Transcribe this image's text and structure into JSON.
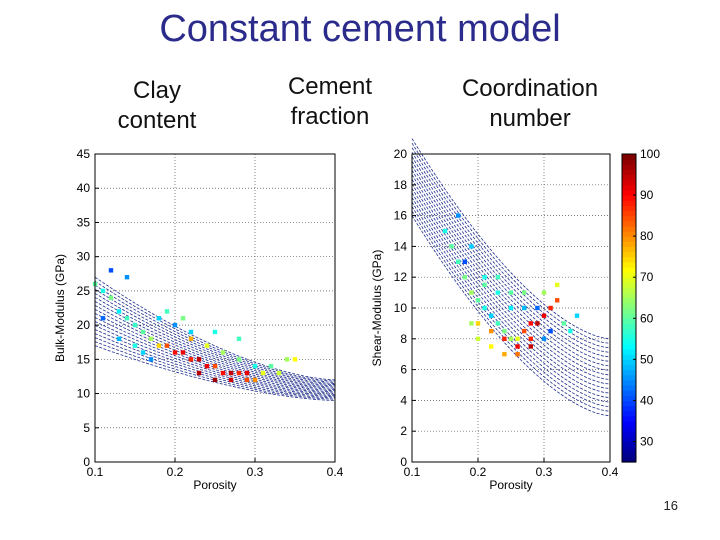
{
  "slide": {
    "title": "Constant cement model",
    "labels": [
      {
        "line1": "Clay",
        "line2": "content"
      },
      {
        "line1": "Cement",
        "line2": "fraction"
      },
      {
        "line1": "Coordination",
        "line2": "number"
      }
    ],
    "page_number": "16"
  },
  "chart_data": [
    {
      "type": "scatter",
      "xlabel": "Porosity",
      "ylabel": "Bulk-Modulus (GPa)",
      "xlim": [
        0.1,
        0.4
      ],
      "ylim": [
        0,
        45
      ],
      "xticks": [
        0.1,
        0.2,
        0.3,
        0.4
      ],
      "yticks": [
        0,
        5,
        10,
        15,
        20,
        25,
        30,
        35,
        40,
        45
      ],
      "grid": true,
      "curves": {
        "count": 18,
        "x_start": 0.1,
        "x_end": 0.4,
        "y_at_start_range": [
          17,
          27
        ],
        "y_at_end_range": [
          9,
          12
        ]
      },
      "points": [
        [
          0.1,
          26,
          60
        ],
        [
          0.11,
          25,
          55
        ],
        [
          0.12,
          24,
          62
        ],
        [
          0.13,
          22,
          52
        ],
        [
          0.14,
          21,
          58
        ],
        [
          0.15,
          20,
          57
        ],
        [
          0.16,
          19,
          60
        ],
        [
          0.17,
          18,
          65
        ],
        [
          0.18,
          17,
          75
        ],
        [
          0.19,
          17,
          85
        ],
        [
          0.2,
          16,
          90
        ],
        [
          0.21,
          16,
          92
        ],
        [
          0.22,
          15,
          88
        ],
        [
          0.23,
          15,
          95
        ],
        [
          0.24,
          14,
          92
        ],
        [
          0.25,
          14,
          85
        ],
        [
          0.26,
          13,
          90
        ],
        [
          0.27,
          13,
          95
        ],
        [
          0.28,
          13,
          88
        ],
        [
          0.29,
          12,
          85
        ],
        [
          0.3,
          12,
          80
        ],
        [
          0.22,
          18,
          78
        ],
        [
          0.24,
          17,
          70
        ],
        [
          0.26,
          16,
          65
        ],
        [
          0.28,
          15,
          62
        ],
        [
          0.3,
          14,
          55
        ],
        [
          0.32,
          14,
          60
        ],
        [
          0.34,
          15,
          65
        ],
        [
          0.18,
          21,
          50
        ],
        [
          0.2,
          20,
          45
        ],
        [
          0.22,
          19,
          50
        ],
        [
          0.25,
          19,
          55
        ],
        [
          0.28,
          18,
          58
        ],
        [
          0.19,
          22,
          58
        ],
        [
          0.21,
          21,
          62
        ],
        [
          0.12,
          28,
          40
        ],
        [
          0.14,
          27,
          45
        ],
        [
          0.11,
          21,
          42
        ],
        [
          0.13,
          18,
          48
        ],
        [
          0.15,
          17,
          55
        ],
        [
          0.16,
          16,
          50
        ],
        [
          0.17,
          15,
          45
        ],
        [
          0.23,
          13,
          96
        ],
        [
          0.25,
          12,
          98
        ],
        [
          0.27,
          12,
          94
        ],
        [
          0.29,
          13,
          92
        ],
        [
          0.31,
          13,
          70
        ],
        [
          0.33,
          13,
          68
        ],
        [
          0.35,
          15,
          72
        ]
      ],
      "colorbar": {
        "min": 25,
        "max": 100,
        "ticks": [
          30,
          40,
          50,
          60,
          70,
          80,
          90,
          100
        ]
      }
    },
    {
      "type": "scatter",
      "xlabel": "Porosity",
      "ylabel": "Shear-Modulus (GPa)",
      "xlim": [
        0.1,
        0.4
      ],
      "ylim": [
        0,
        20
      ],
      "xticks": [
        0.1,
        0.2,
        0.3,
        0.4
      ],
      "yticks": [
        0,
        2,
        4,
        6,
        8,
        10,
        12,
        14,
        16,
        18,
        20
      ],
      "grid": true,
      "curves": {
        "count": 18,
        "x_start": 0.1,
        "x_end": 0.4,
        "y_at_start_range": [
          16,
          21
        ],
        "y_at_end_range": [
          3,
          8
        ]
      },
      "points": [
        [
          0.15,
          15,
          55
        ],
        [
          0.16,
          14,
          60
        ],
        [
          0.17,
          13,
          58
        ],
        [
          0.18,
          12,
          62
        ],
        [
          0.19,
          11,
          65
        ],
        [
          0.2,
          10.5,
          60
        ],
        [
          0.21,
          10,
          55
        ],
        [
          0.22,
          9.5,
          50
        ],
        [
          0.23,
          9,
          58
        ],
        [
          0.24,
          8.5,
          62
        ],
        [
          0.25,
          8,
          65
        ],
        [
          0.26,
          8,
          70
        ],
        [
          0.27,
          8.5,
          85
        ],
        [
          0.28,
          9,
          90
        ],
        [
          0.29,
          9,
          95
        ],
        [
          0.3,
          9.5,
          92
        ],
        [
          0.31,
          10,
          88
        ],
        [
          0.32,
          10.5,
          85
        ],
        [
          0.2,
          9,
          75
        ],
        [
          0.22,
          8.5,
          80
        ],
        [
          0.24,
          8,
          88
        ],
        [
          0.26,
          7.5,
          92
        ],
        [
          0.28,
          7.5,
          95
        ],
        [
          0.3,
          8,
          45
        ],
        [
          0.31,
          8.5,
          40
        ],
        [
          0.29,
          10,
          42
        ],
        [
          0.27,
          10,
          48
        ],
        [
          0.25,
          10,
          52
        ],
        [
          0.23,
          11,
          55
        ],
        [
          0.21,
          11.5,
          60
        ],
        [
          0.19,
          9,
          65
        ],
        [
          0.2,
          8,
          68
        ],
        [
          0.22,
          7.5,
          72
        ],
        [
          0.24,
          7,
          78
        ],
        [
          0.26,
          7,
          82
        ],
        [
          0.18,
          13,
          40
        ],
        [
          0.17,
          16,
          45
        ],
        [
          0.19,
          14,
          50
        ],
        [
          0.21,
          12,
          55
        ],
        [
          0.23,
          12,
          58
        ],
        [
          0.25,
          11,
          60
        ],
        [
          0.27,
          11,
          62
        ],
        [
          0.3,
          11,
          65
        ],
        [
          0.32,
          11.5,
          70
        ],
        [
          0.33,
          9,
          60
        ],
        [
          0.34,
          8.5,
          55
        ],
        [
          0.35,
          9.5,
          50
        ],
        [
          0.28,
          8,
          88
        ]
      ]
    }
  ]
}
